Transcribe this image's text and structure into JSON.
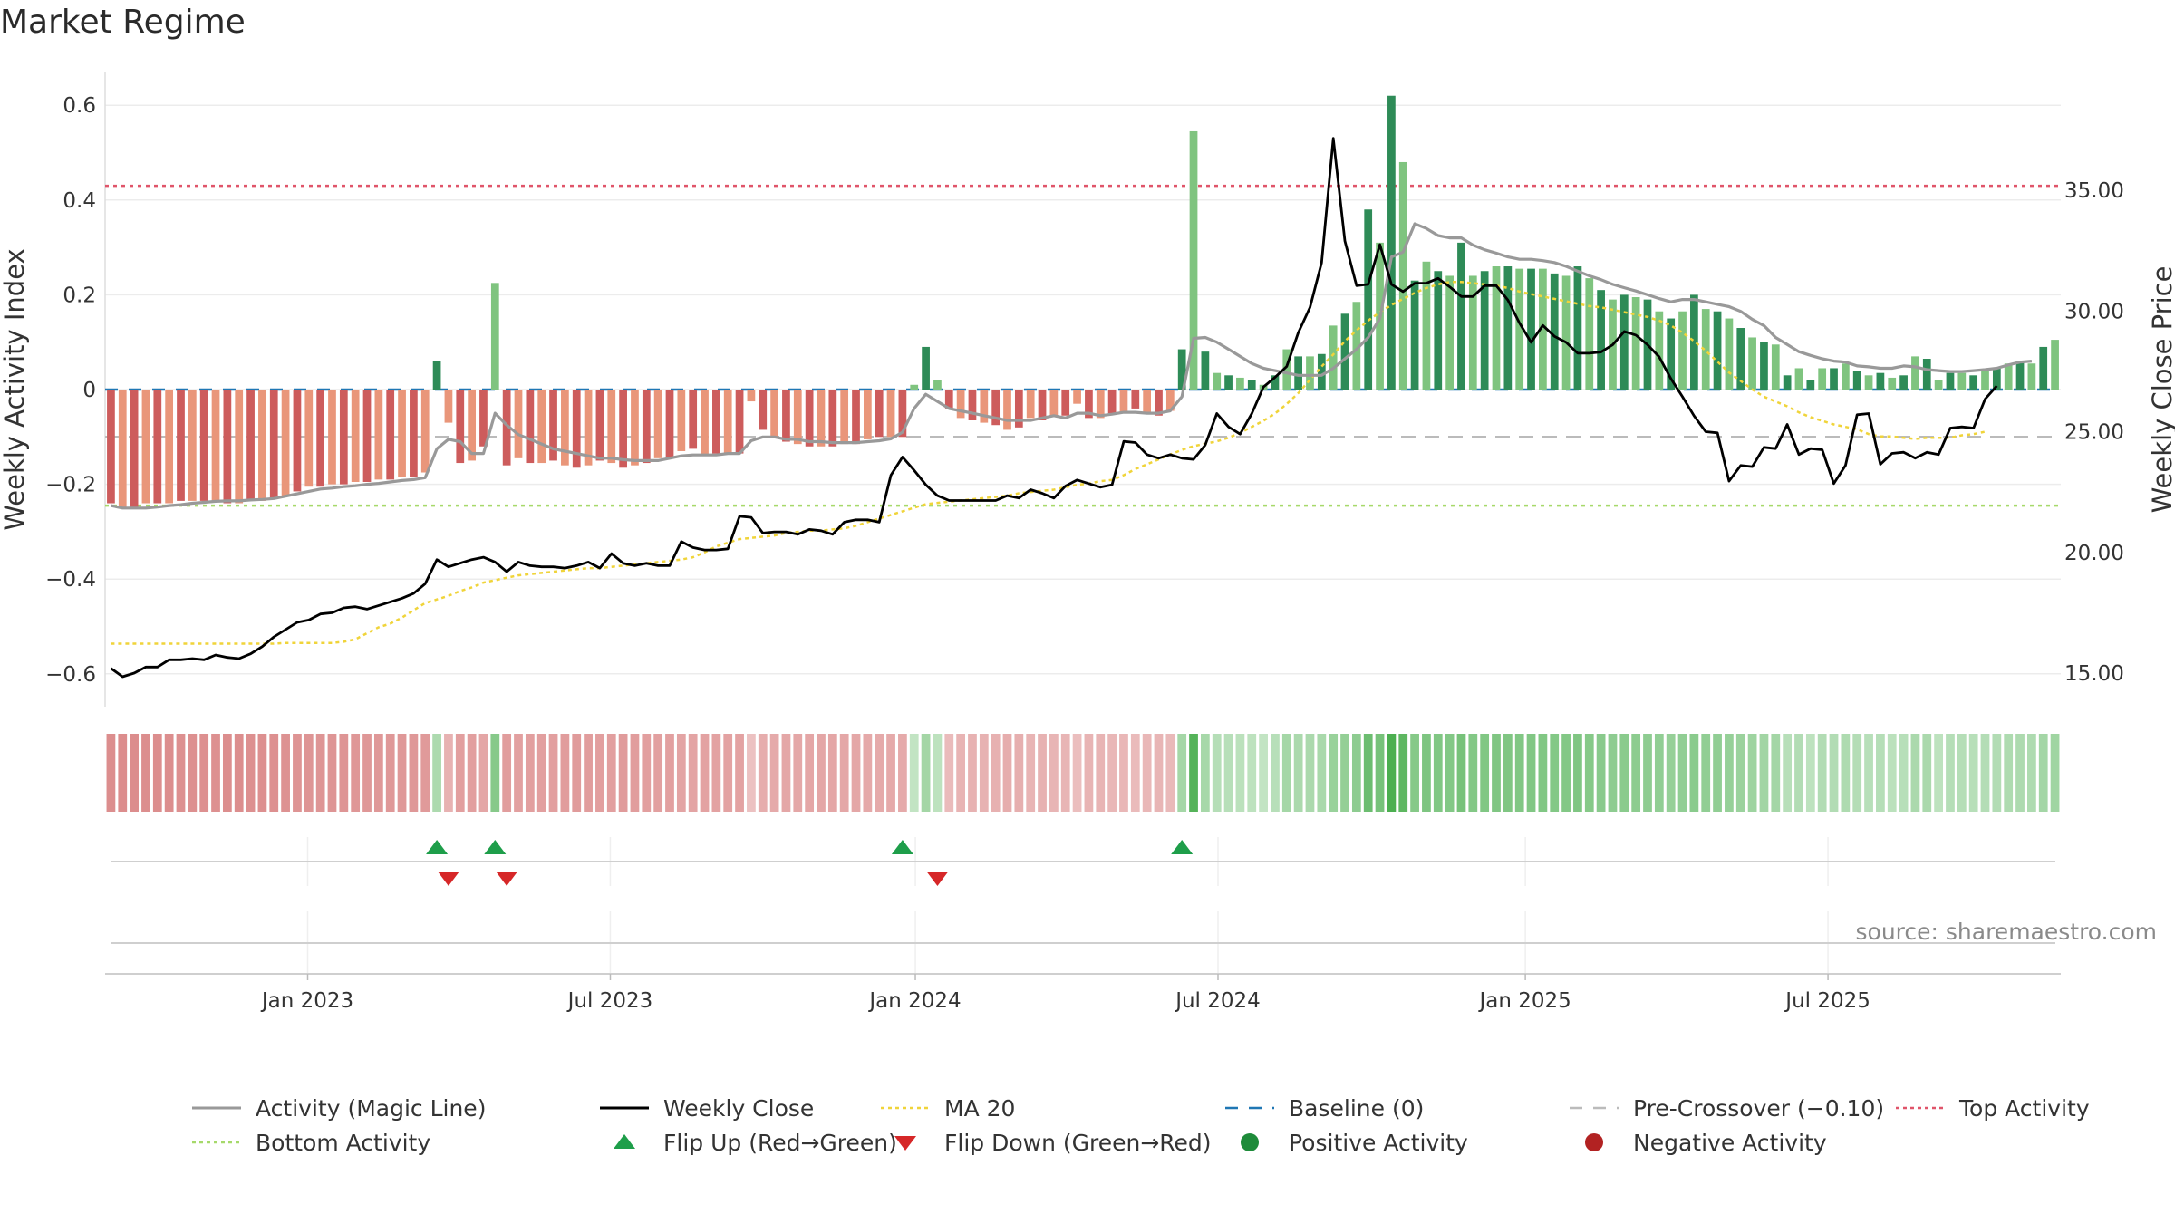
{
  "title": "Market Regime",
  "source": "source: sharemaestro.com",
  "colors": {
    "strong_green": "#2e8b57",
    "light_green": "#7fc47f",
    "strong_red": "#cd5c5c",
    "light_red": "#e9967a",
    "magic_line": "#999999",
    "weekly_close": "#000000",
    "ma20": "#f0d43a",
    "baseline": "#1f77b4",
    "pre_crossover": "#bbbbbb",
    "top_activity": "#e0556a",
    "bottom_activity": "#a6d96a",
    "flip_up": "#1e9e4a",
    "flip_down": "#d62728"
  },
  "legend": [
    {
      "label": "Activity (Magic Line)",
      "kind": "line",
      "color": "#999999"
    },
    {
      "label": "Weekly Close",
      "kind": "line",
      "color": "#000000"
    },
    {
      "label": "MA 20",
      "kind": "dotted",
      "color": "#f0d43a"
    },
    {
      "label": "Baseline (0)",
      "kind": "dashed",
      "color": "#1f77b4"
    },
    {
      "label": "Pre-Crossover (−0.10)",
      "kind": "dashed",
      "color": "#bbbbbb"
    },
    {
      "label": "Top Activity",
      "kind": "dotted",
      "color": "#e0556a"
    },
    {
      "label": "Bottom Activity",
      "kind": "dotted",
      "color": "#a6d96a"
    },
    {
      "label": "Flip Up (Red→Green)",
      "kind": "tri-up",
      "color": "#1e9e4a"
    },
    {
      "label": "Flip Down (Green→Red)",
      "kind": "tri-down",
      "color": "#d62728"
    },
    {
      "label": "Positive Activity",
      "kind": "dot",
      "color": "#1e8b3a"
    },
    {
      "label": "Negative Activity",
      "kind": "dot",
      "color": "#b22222"
    }
  ],
  "chart_data": {
    "type": "bar",
    "title": "Market Regime",
    "ylabel_left": "Weekly Activity Index",
    "ylabel_right": "Weekly Close Price",
    "ylim_left": [
      -0.66,
      0.66
    ],
    "ylim_right": [
      13.85,
      39.15
    ],
    "yticks_left": [
      0.6,
      0.4,
      0.2,
      0,
      -0.2,
      -0.4,
      -0.6
    ],
    "ytick_labels_left": [
      "0.6",
      "0.4",
      "0.2",
      "0",
      "−0.2",
      "−0.4",
      "−0.6"
    ],
    "yticks_right": [
      35,
      30,
      25,
      20,
      15
    ],
    "ytick_labels_right": [
      "35.00",
      "30.00",
      "25.00",
      "20.00",
      "15.00"
    ],
    "xtick_labels": [
      "Jan 2023",
      "Jul 2023",
      "Jan 2024",
      "Jul 2024",
      "Jan 2025",
      "Jul 2025"
    ],
    "xtick_weeks": [
      17.4,
      43.4,
      69.6,
      95.6,
      122.0,
      148.0
    ],
    "reference_lines": {
      "top_activity": 0.43,
      "bottom_activity": -0.245,
      "pre_crossover": -0.1,
      "baseline": 0
    },
    "activity": [
      -0.24,
      -0.25,
      -0.25,
      -0.24,
      -0.24,
      -0.24,
      -0.235,
      -0.235,
      -0.235,
      -0.235,
      -0.24,
      -0.24,
      -0.235,
      -0.235,
      -0.23,
      -0.225,
      -0.215,
      -0.205,
      -0.205,
      -0.2,
      -0.2,
      -0.195,
      -0.195,
      -0.19,
      -0.19,
      -0.185,
      -0.185,
      -0.175,
      0.06,
      -0.07,
      -0.155,
      -0.15,
      -0.12,
      0.225,
      -0.16,
      -0.145,
      -0.155,
      -0.155,
      -0.15,
      -0.16,
      -0.165,
      -0.16,
      -0.15,
      -0.155,
      -0.165,
      -0.16,
      -0.155,
      -0.145,
      -0.145,
      -0.13,
      -0.125,
      -0.14,
      -0.135,
      -0.135,
      -0.135,
      -0.025,
      -0.085,
      -0.1,
      -0.11,
      -0.115,
      -0.12,
      -0.12,
      -0.12,
      -0.115,
      -0.115,
      -0.105,
      -0.1,
      -0.1,
      -0.1,
      0.01,
      0.09,
      0.02,
      -0.04,
      -0.06,
      -0.065,
      -0.07,
      -0.075,
      -0.085,
      -0.08,
      -0.06,
      -0.065,
      -0.055,
      -0.055,
      -0.03,
      -0.06,
      -0.06,
      -0.05,
      -0.05,
      -0.04,
      -0.05,
      -0.055,
      -0.045,
      0.085,
      0.545,
      0.08,
      0.035,
      0.03,
      0.025,
      0.02,
      0.01,
      0.03,
      0.085,
      0.07,
      0.07,
      0.075,
      0.135,
      0.16,
      0.185,
      0.38,
      0.31,
      0.62,
      0.48,
      0.23,
      0.27,
      0.25,
      0.24,
      0.31,
      0.24,
      0.25,
      0.26,
      0.26,
      0.255,
      0.255,
      0.255,
      0.245,
      0.24,
      0.26,
      0.235,
      0.21,
      0.19,
      0.2,
      0.195,
      0.19,
      0.165,
      0.15,
      0.165,
      0.2,
      0.17,
      0.165,
      0.15,
      0.13,
      0.11,
      0.1,
      0.095,
      0.03,
      0.045,
      0.02,
      0.045,
      0.045,
      0.055,
      0.04,
      0.03,
      0.035,
      0.025,
      0.03,
      0.07,
      0.065,
      0.02,
      0.035,
      0.035,
      0.03,
      0.04,
      0.045,
      0.055,
      0.06,
      0.055,
      0.09,
      0.105
    ],
    "magic_line": [
      -0.245,
      -0.25,
      -0.25,
      -0.25,
      -0.248,
      -0.245,
      -0.243,
      -0.24,
      -0.238,
      -0.236,
      -0.235,
      -0.235,
      -0.233,
      -0.232,
      -0.23,
      -0.225,
      -0.22,
      -0.215,
      -0.21,
      -0.208,
      -0.205,
      -0.203,
      -0.2,
      -0.198,
      -0.195,
      -0.192,
      -0.19,
      -0.186,
      -0.125,
      -0.105,
      -0.11,
      -0.135,
      -0.135,
      -0.05,
      -0.075,
      -0.095,
      -0.105,
      -0.115,
      -0.125,
      -0.13,
      -0.135,
      -0.14,
      -0.145,
      -0.145,
      -0.148,
      -0.15,
      -0.15,
      -0.15,
      -0.145,
      -0.14,
      -0.138,
      -0.138,
      -0.138,
      -0.135,
      -0.135,
      -0.108,
      -0.1,
      -0.1,
      -0.105,
      -0.105,
      -0.11,
      -0.11,
      -0.112,
      -0.112,
      -0.112,
      -0.11,
      -0.108,
      -0.104,
      -0.09,
      -0.04,
      -0.01,
      -0.025,
      -0.04,
      -0.045,
      -0.05,
      -0.055,
      -0.06,
      -0.065,
      -0.065,
      -0.065,
      -0.06,
      -0.055,
      -0.06,
      -0.05,
      -0.05,
      -0.055,
      -0.052,
      -0.048,
      -0.048,
      -0.05,
      -0.05,
      -0.045,
      -0.015,
      0.108,
      0.11,
      0.1,
      0.085,
      0.07,
      0.055,
      0.045,
      0.04,
      0.035,
      0.03,
      0.03,
      0.03,
      0.045,
      0.065,
      0.085,
      0.11,
      0.15,
      0.28,
      0.29,
      0.35,
      0.34,
      0.325,
      0.32,
      0.32,
      0.305,
      0.295,
      0.288,
      0.28,
      0.275,
      0.275,
      0.272,
      0.268,
      0.26,
      0.25,
      0.24,
      0.232,
      0.222,
      0.215,
      0.208,
      0.2,
      0.192,
      0.185,
      0.19,
      0.19,
      0.185,
      0.18,
      0.175,
      0.165,
      0.148,
      0.135,
      0.11,
      0.095,
      0.08,
      0.072,
      0.065,
      0.06,
      0.058,
      0.05,
      0.048,
      0.045,
      0.045,
      0.05,
      0.048,
      0.042,
      0.04,
      0.038,
      0.038,
      0.04,
      0.042,
      0.045,
      0.052,
      0.058,
      0.06
    ],
    "weekly_close": [
      15.2,
      14.85,
      15.0,
      15.25,
      15.25,
      15.55,
      15.55,
      15.6,
      15.55,
      15.75,
      15.65,
      15.6,
      15.8,
      16.1,
      16.5,
      16.8,
      17.1,
      17.2,
      17.45,
      17.5,
      17.7,
      17.75,
      17.65,
      17.8,
      17.95,
      18.1,
      18.3,
      18.7,
      19.7,
      19.4,
      19.55,
      19.7,
      19.8,
      19.6,
      19.2,
      19.6,
      19.45,
      19.4,
      19.4,
      19.35,
      19.45,
      19.6,
      19.35,
      19.95,
      19.55,
      19.45,
      19.55,
      19.45,
      19.45,
      20.45,
      20.2,
      20.1,
      20.1,
      20.15,
      21.5,
      21.45,
      20.8,
      20.85,
      20.85,
      20.75,
      20.95,
      20.9,
      20.75,
      21.25,
      21.35,
      21.35,
      21.25,
      23.2,
      23.95,
      23.4,
      22.8,
      22.35,
      22.15,
      22.15,
      22.15,
      22.15,
      22.15,
      22.35,
      22.25,
      22.6,
      22.45,
      22.25,
      22.75,
      23.0,
      22.85,
      22.7,
      22.8,
      24.6,
      24.55,
      24.05,
      23.9,
      24.05,
      23.9,
      23.85,
      24.45,
      25.75,
      25.2,
      24.9,
      25.75,
      26.85,
      27.25,
      27.7,
      29.1,
      30.15,
      32.0,
      37.15,
      32.9,
      31.05,
      31.1,
      32.75,
      31.1,
      30.8,
      31.15,
      31.15,
      31.35,
      31.0,
      30.6,
      30.6,
      31.05,
      31.05,
      30.45,
      29.5,
      28.7,
      29.4,
      28.95,
      28.7,
      28.25,
      28.25,
      28.3,
      28.6,
      29.15,
      29.0,
      28.6,
      28.1,
      27.2,
      26.45,
      25.65,
      25.0,
      24.95,
      22.95,
      23.6,
      23.55,
      24.35,
      24.3,
      25.3,
      24.05,
      24.3,
      24.25,
      22.85,
      23.6,
      25.7,
      25.75,
      23.65,
      24.1,
      24.15,
      23.9,
      24.15,
      24.05,
      25.15,
      25.2,
      25.15,
      26.35,
      26.9
    ],
    "ma20": [
      16.22,
      16.22,
      16.22,
      16.22,
      16.22,
      16.22,
      16.22,
      16.22,
      16.22,
      16.22,
      16.22,
      16.22,
      16.22,
      16.22,
      16.22,
      16.25,
      16.25,
      16.25,
      16.25,
      16.25,
      16.3,
      16.4,
      16.65,
      16.9,
      17.05,
      17.3,
      17.6,
      17.9,
      18.05,
      18.2,
      18.4,
      18.55,
      18.75,
      18.85,
      18.95,
      19.05,
      19.1,
      19.15,
      19.2,
      19.25,
      19.3,
      19.35,
      19.35,
      19.4,
      19.45,
      19.5,
      19.55,
      19.6,
      19.65,
      19.7,
      19.8,
      20.0,
      20.25,
      20.4,
      20.55,
      20.6,
      20.65,
      20.7,
      20.8,
      20.85,
      20.9,
      20.9,
      20.95,
      21.0,
      21.1,
      21.25,
      21.4,
      21.55,
      21.7,
      21.85,
      22.0,
      22.05,
      22.1,
      22.15,
      22.2,
      22.25,
      22.3,
      22.35,
      22.45,
      22.5,
      22.55,
      22.6,
      22.7,
      22.8,
      22.85,
      22.95,
      23.0,
      23.2,
      23.45,
      23.65,
      23.85,
      24.05,
      24.25,
      24.4,
      24.5,
      24.6,
      24.75,
      24.95,
      25.2,
      25.45,
      25.75,
      26.15,
      26.6,
      27.15,
      27.7,
      28.2,
      28.75,
      29.2,
      29.6,
      29.95,
      30.25,
      30.5,
      30.75,
      30.95,
      31.1,
      31.2,
      31.2,
      31.15,
      31.1,
      31.05,
      30.95,
      30.8,
      30.7,
      30.6,
      30.5,
      30.4,
      30.3,
      30.2,
      30.15,
      30.05,
      29.95,
      29.85,
      29.75,
      29.6,
      29.4,
      29.1,
      28.75,
      28.35,
      27.9,
      27.45,
      27.1,
      26.75,
      26.45,
      26.25,
      26.05,
      25.8,
      25.6,
      25.45,
      25.3,
      25.2,
      25.1,
      24.9,
      24.8,
      24.8,
      24.75,
      24.7,
      24.75,
      24.75,
      24.75,
      24.85,
      24.9,
      25.0
    ],
    "flip_up_weeks": [
      28,
      33,
      68,
      92
    ],
    "flip_down_weeks": [
      29,
      34,
      71
    ]
  }
}
